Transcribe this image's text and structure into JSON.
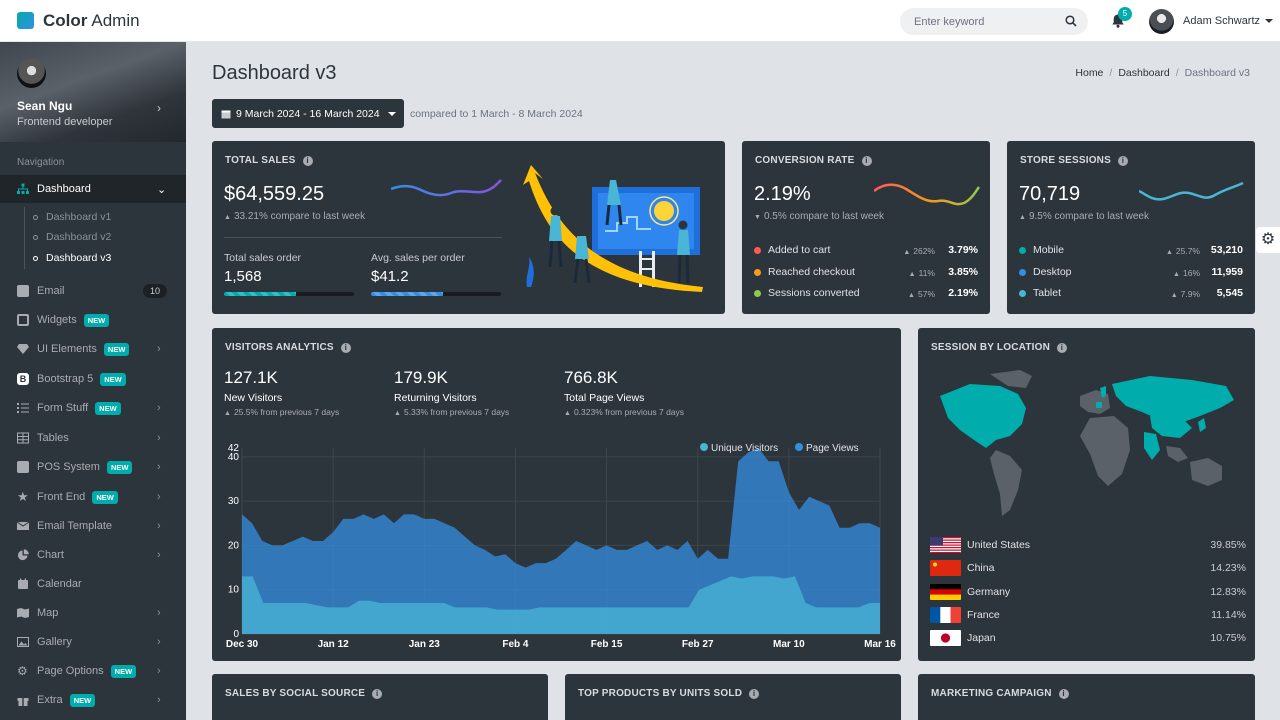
{
  "app": {
    "brand_bold": "Color",
    "brand_rest": "Admin"
  },
  "header": {
    "search_placeholder": "Enter keyword",
    "notification_count": "5",
    "user_name": "Adam Schwartz"
  },
  "profile": {
    "name": "Sean Ngu",
    "role": "Frontend developer"
  },
  "nav": {
    "heading": "Navigation",
    "dashboard": "Dashboard",
    "sub": [
      "Dashboard v1",
      "Dashboard v2",
      "Dashboard v3"
    ],
    "items": [
      {
        "label": "Email",
        "count": "10"
      },
      {
        "label": "Widgets",
        "badge": "NEW"
      },
      {
        "label": "UI Elements",
        "badge": "NEW"
      },
      {
        "label": "Bootstrap 5",
        "badge": "NEW"
      },
      {
        "label": "Form Stuff",
        "badge": "NEW"
      },
      {
        "label": "Tables"
      },
      {
        "label": "POS System",
        "badge": "NEW"
      },
      {
        "label": "Front End",
        "badge": "NEW"
      },
      {
        "label": "Email Template"
      },
      {
        "label": "Chart"
      },
      {
        "label": "Calendar"
      },
      {
        "label": "Map"
      },
      {
        "label": "Gallery"
      },
      {
        "label": "Page Options",
        "badge": "NEW"
      },
      {
        "label": "Extra",
        "badge": "NEW"
      }
    ]
  },
  "page": {
    "title": "Dashboard v3",
    "breadcrumb": [
      "Home",
      "Dashboard",
      "Dashboard v3"
    ],
    "date_range": "9 March 2024 - 16 March 2024",
    "compared": "compared to 1 March - 8 March 2024"
  },
  "total_sales": {
    "title": "TOTAL SALES",
    "value": "$64,559.25",
    "change": "33.21% compare to last week",
    "orders_label": "Total sales order",
    "orders_value": "1,568",
    "avg_label": "Avg. sales per order",
    "avg_value": "$41.2",
    "orders_progress": 0.55,
    "avg_progress": 0.55
  },
  "conversion": {
    "title": "CONVERSION RATE",
    "value": "2.19%",
    "change": "0.5% compare to last week",
    "rows": [
      {
        "label": "Added to cart",
        "pct": "262%",
        "val": "3.79%",
        "color": "#ff5b57"
      },
      {
        "label": "Reached checkout",
        "pct": "11%",
        "val": "3.85%",
        "color": "#f59c1a"
      },
      {
        "label": "Sessions converted",
        "pct": "57%",
        "val": "2.19%",
        "color": "#90ca4b"
      }
    ]
  },
  "sessions": {
    "title": "STORE SESSIONS",
    "value": "70,719",
    "change": "9.5% compare to last week",
    "rows": [
      {
        "label": "Mobile",
        "pct": "25.7%",
        "val": "53,210",
        "color": "#00acac"
      },
      {
        "label": "Desktop",
        "pct": "16%",
        "val": "11,959",
        "color": "#348fe2"
      },
      {
        "label": "Tablet",
        "pct": "7.9%",
        "val": "5,545",
        "color": "#49b6d6"
      }
    ]
  },
  "visitors": {
    "title": "VISITORS ANALYTICS",
    "stats": [
      {
        "value": "127.1K",
        "label": "New Visitors",
        "sub": "25.5% from previous 7 days"
      },
      {
        "value": "179.9K",
        "label": "Returning Visitors",
        "sub": "5.33% from previous 7 days"
      },
      {
        "value": "766.8K",
        "label": "Total Page Views",
        "sub": "0.323% from previous 7 days"
      }
    ]
  },
  "location": {
    "title": "SESSION BY LOCATION",
    "countries": [
      {
        "name": "United States",
        "pct": "39.85%"
      },
      {
        "name": "China",
        "pct": "14.23%"
      },
      {
        "name": "Germany",
        "pct": "12.83%"
      },
      {
        "name": "France",
        "pct": "11.14%"
      },
      {
        "name": "Japan",
        "pct": "10.75%"
      }
    ]
  },
  "bottom": {
    "social": "SALES BY SOCIAL SOURCE",
    "products": "TOP PRODUCTS BY UNITS SOLD",
    "marketing": "MARKETING CAMPAIGN"
  },
  "chart_data": {
    "type": "area",
    "ylim": [
      0,
      42
    ],
    "yticks": [
      "0",
      "10",
      "20",
      "30",
      "40",
      "42"
    ],
    "xticks": [
      "Dec 30",
      "Jan 12",
      "Jan 23",
      "Feb 4",
      "Feb 15",
      "Feb 27",
      "Mar 10",
      "Mar 16"
    ],
    "series": [
      {
        "name": "Unique Visitors",
        "color": "#49b6d6",
        "values": [
          13,
          13,
          7,
          7,
          7,
          7,
          7,
          6.5,
          6,
          6,
          6,
          7.5,
          7.5,
          7,
          7,
          7,
          7,
          7,
          7,
          7,
          6,
          6,
          6,
          6,
          5.5,
          5.5,
          5.5,
          5.5,
          6,
          6,
          6,
          6,
          6,
          6,
          6,
          6,
          6,
          6,
          6,
          6,
          6,
          6,
          6,
          10,
          11,
          12,
          13,
          12.5,
          13,
          13,
          13,
          12.5,
          13,
          7,
          6,
          6,
          6,
          6,
          6,
          7,
          7
        ]
      },
      {
        "name": "Page Views",
        "color": "#348fe2",
        "values": [
          27,
          25,
          21,
          20,
          20,
          21,
          22,
          21,
          21,
          23,
          26,
          26,
          27,
          26,
          27,
          25,
          27,
          27,
          26,
          26,
          25,
          24,
          22,
          20,
          19,
          17.5,
          18,
          16,
          15,
          16,
          16,
          17,
          19,
          21,
          20,
          19,
          20,
          19,
          19,
          20,
          21,
          19,
          20,
          19,
          21,
          17,
          19,
          17,
          17,
          39,
          41,
          42,
          39,
          39,
          32,
          28,
          31,
          30,
          29,
          24,
          24,
          25,
          25,
          24
        ]
      }
    ]
  }
}
